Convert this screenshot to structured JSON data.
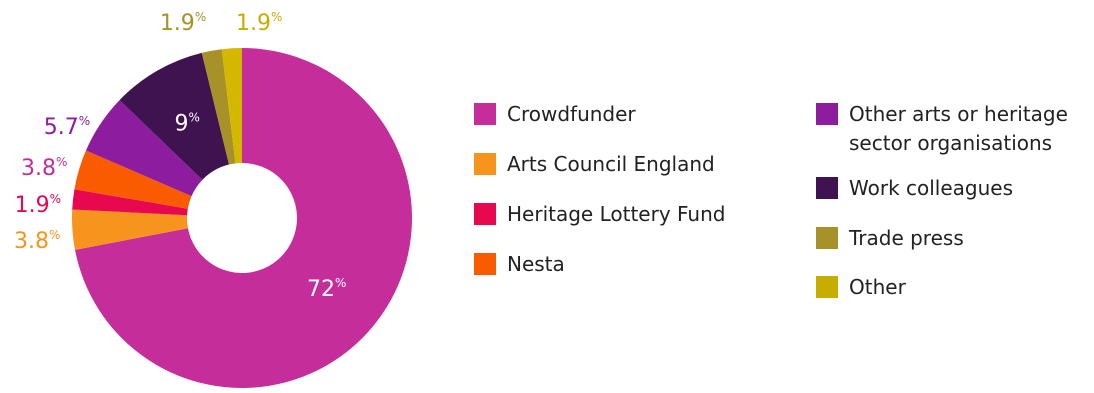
{
  "chart_data": {
    "type": "pie",
    "donut": true,
    "title": "",
    "slices": [
      {
        "label": "Crowdfunder",
        "value": 72,
        "display": "72",
        "color": "#c52e9a",
        "label_color": "#ffffff"
      },
      {
        "label": "Arts Council England",
        "value": 3.8,
        "display": "3.8",
        "color": "#f7941d",
        "label_color": "#f7941d"
      },
      {
        "label": "Heritage Lottery Fund",
        "value": 1.9,
        "display": "1.9",
        "color": "#e8084f",
        "label_color": "#e8084f"
      },
      {
        "label": "Nesta",
        "value": 3.8,
        "display": "3.8",
        "color": "#fa5a00",
        "label_color": "#c52e9a"
      },
      {
        "label": "Other arts or heritage sector organisations",
        "value": 5.7,
        "display": "5.7",
        "color": "#8d1c9e",
        "label_color": "#8d1c9e"
      },
      {
        "label": "Work colleagues",
        "value": 9,
        "display": "9",
        "color": "#3f1350",
        "label_color": "#ffffff"
      },
      {
        "label": "Trade press",
        "value": 1.9,
        "display": "1.9",
        "color": "#a69228",
        "label_color": "#a69228"
      },
      {
        "label": "Other",
        "value": 1.9,
        "display": "1.9",
        "color": "#d4b800",
        "label_color": "#c7ad00"
      }
    ],
    "percent_symbol": "%",
    "legend": {
      "position": "right",
      "columns": [
        [
          {
            "lines": [
              "Crowdfunder"
            ],
            "color": "#c52e9a"
          },
          {
            "lines": [
              "Arts Council England"
            ],
            "color": "#f7941d"
          },
          {
            "lines": [
              "Heritage Lottery Fund"
            ],
            "color": "#e8084f"
          },
          {
            "lines": [
              "Nesta"
            ],
            "color": "#fa5a00"
          }
        ],
        [
          {
            "lines": [
              "Other arts or heritage",
              "sector organisations"
            ],
            "color": "#8d1c9e"
          },
          {
            "lines": [
              "Work colleagues"
            ],
            "color": "#3f1350"
          },
          {
            "lines": [
              "Trade press"
            ],
            "color": "#a69228"
          },
          {
            "lines": [
              "Other"
            ],
            "color": "#c7ad00"
          }
        ]
      ]
    }
  }
}
